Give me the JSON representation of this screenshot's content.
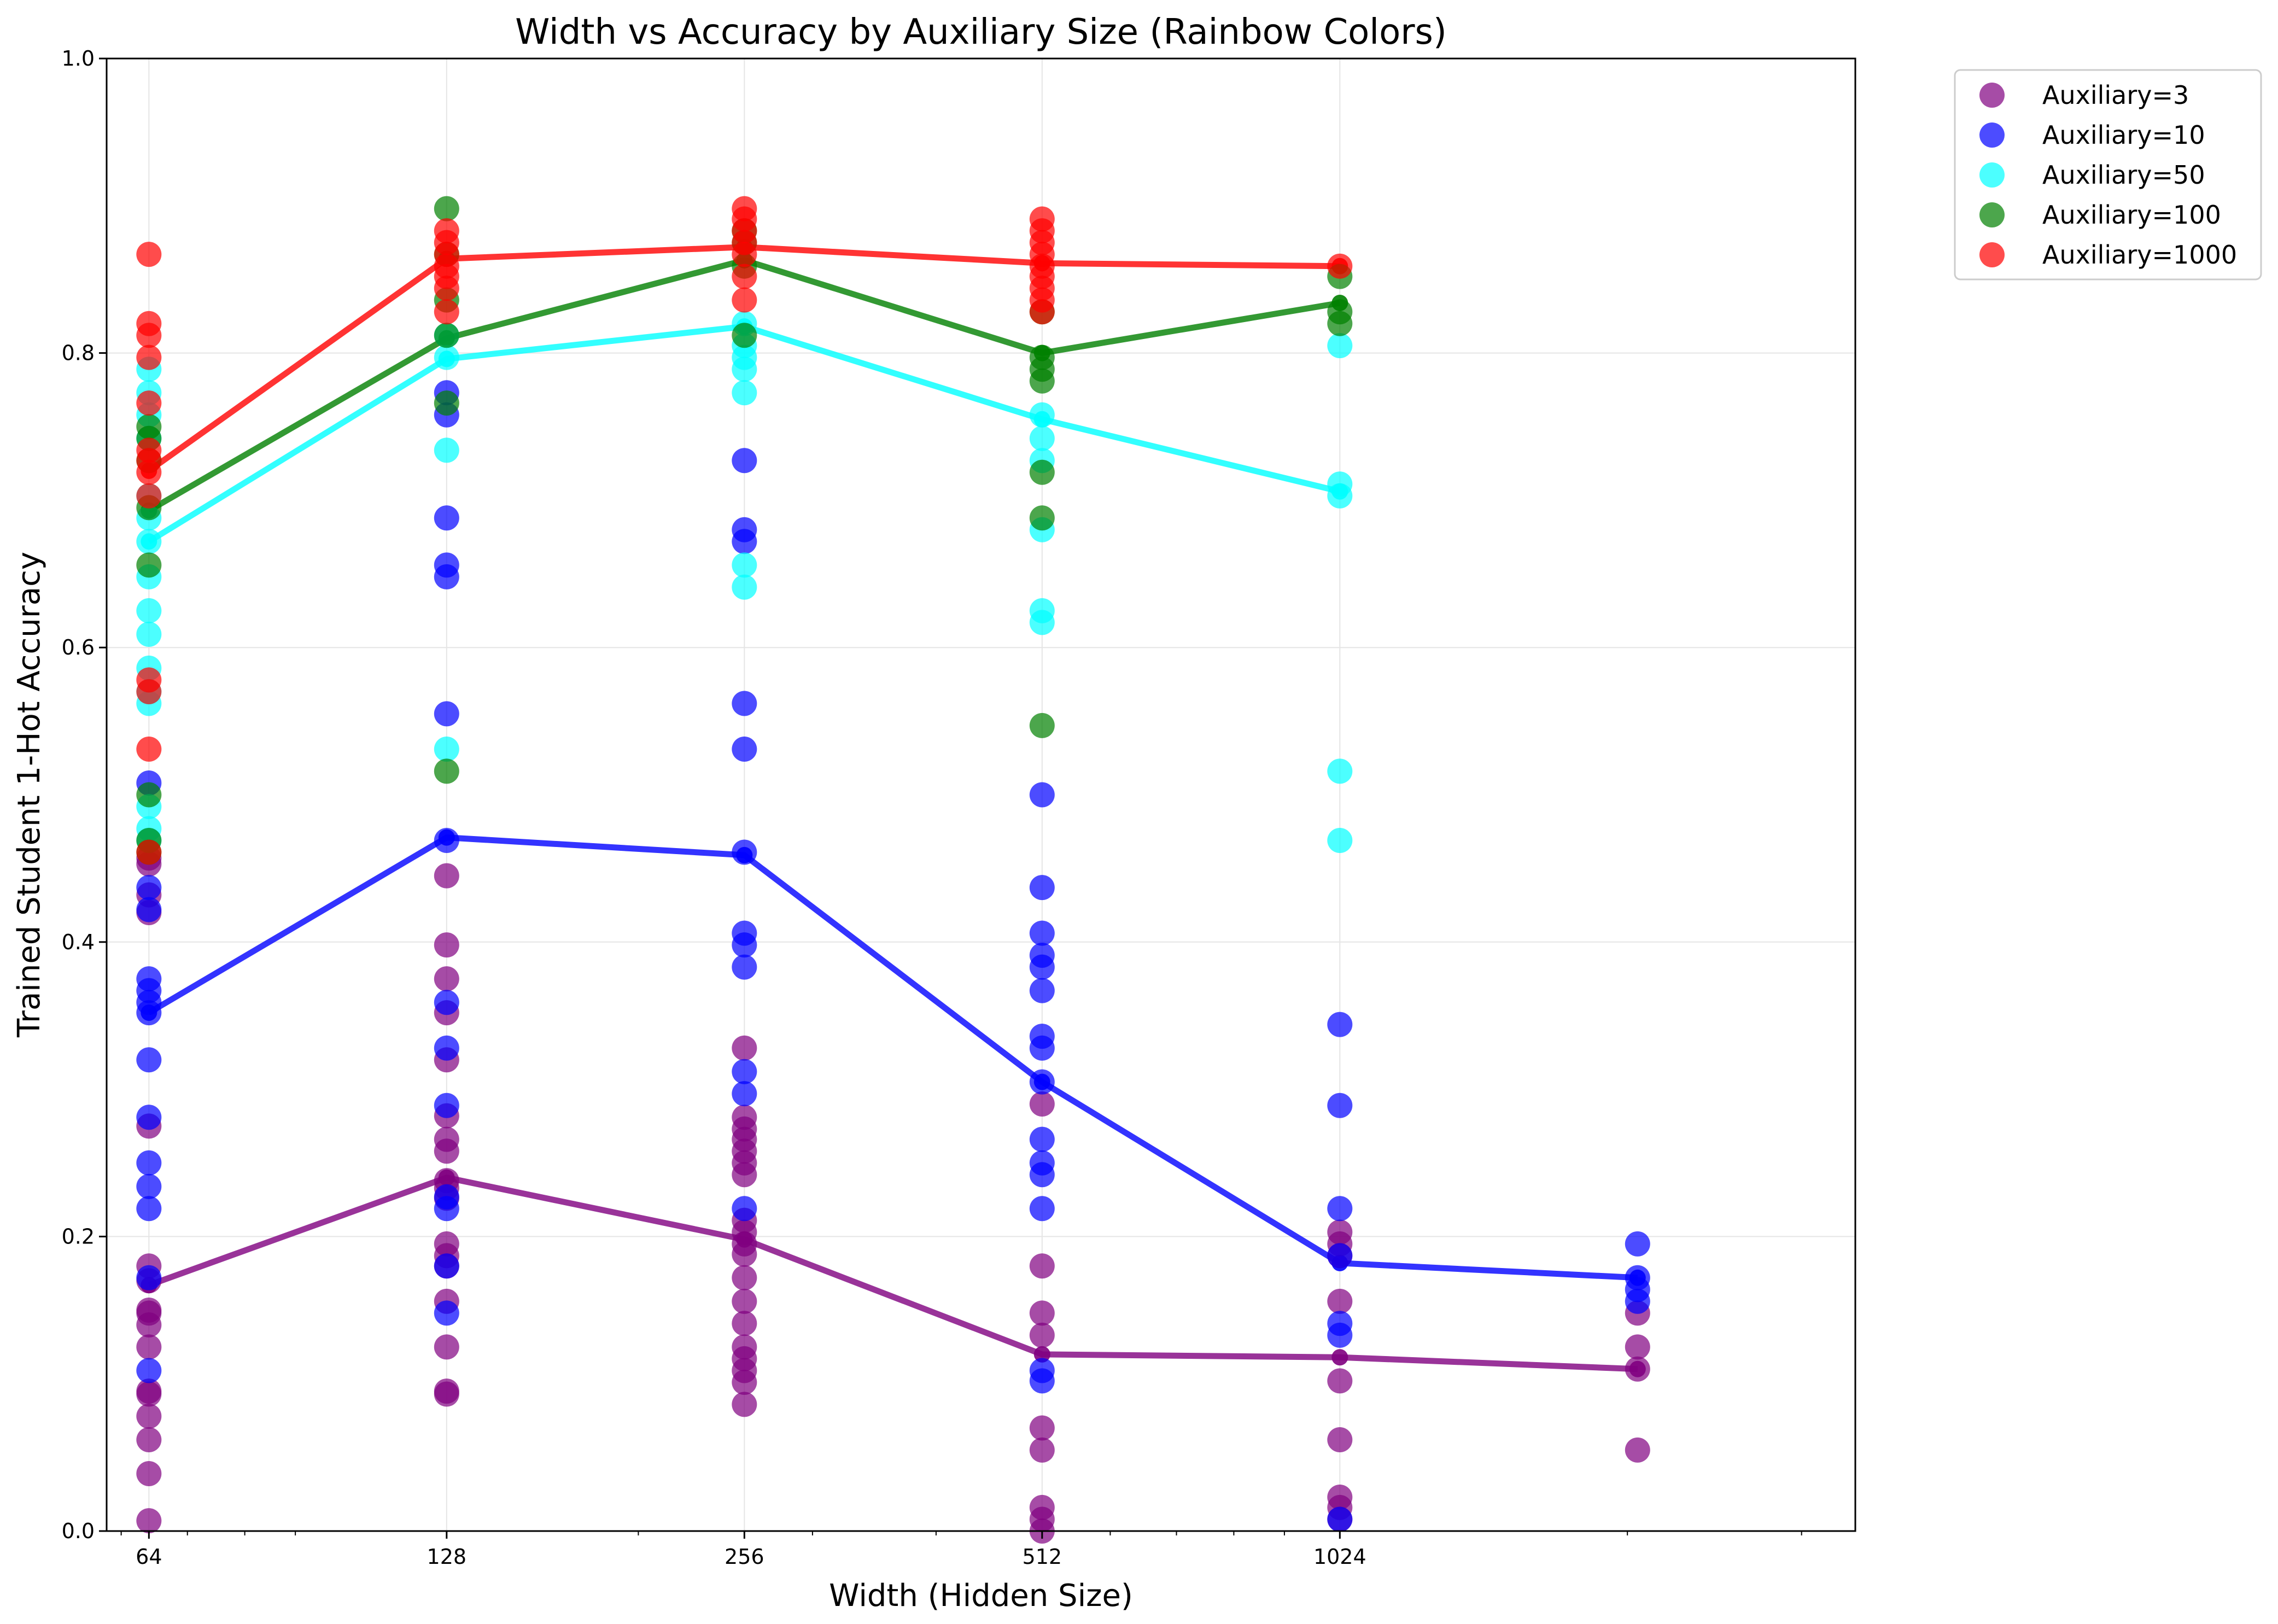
{
  "chart_data": {
    "type": "scatter",
    "title": "Width vs Accuracy by Auxiliary Size (Rainbow Colors)",
    "xlabel": "Width (Hidden Size)",
    "ylabel": "Trained Student 1-Hot Accuracy",
    "x_scale": "log2",
    "xlim": [
      58,
      3400
    ],
    "ylim": [
      0,
      1
    ],
    "x_ticks": [
      64,
      128,
      256,
      512,
      1024
    ],
    "x_tick_labels": [
      "64",
      "128",
      "256",
      "512",
      "1024"
    ],
    "y_ticks": [
      0,
      0.2,
      0.4,
      0.6,
      0.8,
      1.0
    ],
    "y_tick_labels": [
      "0.0",
      "0.2",
      "0.4",
      "0.6",
      "0.8",
      "1.0"
    ],
    "grid": true,
    "legend_position": "outside-top-right",
    "series": [
      {
        "name": "Auxiliary=3",
        "color": "#800080",
        "mean_line": {
          "x": [
            64,
            128,
            256,
            512,
            1024,
            2048
          ],
          "y": [
            0.167,
            0.24,
            0.198,
            0.12,
            0.118,
            0.11
          ]
        },
        "points": [
          {
            "x": 64,
            "y": [
              0.007,
              0.039,
              0.062,
              0.078,
              0.093,
              0.095,
              0.125,
              0.14,
              0.148,
              0.15,
              0.17,
              0.18,
              0.275,
              0.42,
              0.432,
              0.453,
              0.457
            ]
          },
          {
            "x": 128,
            "y": [
              0.093,
              0.095,
              0.125,
              0.156,
              0.18,
              0.187,
              0.195,
              0.226,
              0.233,
              0.238,
              0.258,
              0.266,
              0.282,
              0.32,
              0.352,
              0.375,
              0.398,
              0.445
            ]
          },
          {
            "x": 256,
            "y": [
              0.086,
              0.101,
              0.109,
              0.117,
              0.125,
              0.141,
              0.156,
              0.172,
              0.188,
              0.195,
              0.203,
              0.211,
              0.242,
              0.25,
              0.258,
              0.266,
              0.273,
              0.281,
              0.328
            ]
          },
          {
            "x": 512,
            "y": [
              0.0,
              0.008,
              0.016,
              0.055,
              0.07,
              0.133,
              0.148,
              0.18,
              0.29
            ]
          },
          {
            "x": 1024,
            "y": [
              0.008,
              0.016,
              0.023,
              0.062,
              0.102,
              0.156,
              0.187,
              0.195,
              0.203
            ]
          },
          {
            "x": 2048,
            "y": [
              0.055,
              0.11,
              0.125,
              0.148
            ]
          }
        ]
      },
      {
        "name": "Auxiliary=10",
        "color": "#0000ff",
        "mean_line": {
          "x": [
            64,
            128,
            256,
            512,
            1024,
            2048
          ],
          "y": [
            0.352,
            0.471,
            0.459,
            0.305,
            0.182,
            0.172
          ]
        },
        "points": [
          {
            "x": 64,
            "y": [
              0.109,
              0.172,
              0.219,
              0.234,
              0.25,
              0.281,
              0.32,
              0.352,
              0.359,
              0.367,
              0.375,
              0.422,
              0.437,
              0.508
            ]
          },
          {
            "x": 128,
            "y": [
              0.148,
              0.18,
              0.219,
              0.227,
              0.289,
              0.328,
              0.359,
              0.469,
              0.555,
              0.648,
              0.656,
              0.688,
              0.758,
              0.773
            ]
          },
          {
            "x": 256,
            "y": [
              0.219,
              0.297,
              0.312,
              0.383,
              0.398,
              0.406,
              0.461,
              0.531,
              0.562,
              0.672,
              0.68,
              0.727
            ]
          },
          {
            "x": 512,
            "y": [
              0.102,
              0.109,
              0.219,
              0.242,
              0.25,
              0.266,
              0.305,
              0.328,
              0.336,
              0.367,
              0.383,
              0.391,
              0.406,
              0.437,
              0.5
            ]
          },
          {
            "x": 1024,
            "y": [
              0.008,
              0.133,
              0.141,
              0.187,
              0.219,
              0.289,
              0.344
            ]
          },
          {
            "x": 2048,
            "y": [
              0.156,
              0.164,
              0.172,
              0.195
            ]
          }
        ]
      },
      {
        "name": "Auxiliary=50",
        "color": "#00ffff",
        "mean_line": {
          "x": [
            64,
            128,
            256,
            512,
            1024
          ],
          "y": [
            0.672,
            0.796,
            0.818,
            0.755,
            0.706
          ]
        },
        "points": [
          {
            "x": 64,
            "y": [
              0.469,
              0.477,
              0.492,
              0.562,
              0.57,
              0.586,
              0.609,
              0.625,
              0.648,
              0.672,
              0.688,
              0.703,
              0.742,
              0.758,
              0.773,
              0.789
            ]
          },
          {
            "x": 128,
            "y": [
              0.531,
              0.734,
              0.797,
              0.812
            ]
          },
          {
            "x": 256,
            "y": [
              0.641,
              0.656,
              0.773,
              0.789,
              0.797,
              0.805,
              0.82
            ]
          },
          {
            "x": 512,
            "y": [
              0.617,
              0.625,
              0.68,
              0.727,
              0.742,
              0.758
            ]
          },
          {
            "x": 1024,
            "y": [
              0.469,
              0.516,
              0.703,
              0.711,
              0.805
            ]
          }
        ]
      },
      {
        "name": "Auxiliary=100",
        "color": "#008000",
        "mean_line": {
          "x": [
            64,
            128,
            256,
            512,
            1024
          ],
          "y": [
            0.693,
            0.81,
            0.863,
            0.8,
            0.834
          ]
        },
        "points": [
          {
            "x": 64,
            "y": [
              0.461,
              0.469,
              0.5,
              0.656,
              0.695,
              0.727,
              0.742,
              0.75
            ]
          },
          {
            "x": 128,
            "y": [
              0.516,
              0.766,
              0.812,
              0.836,
              0.867,
              0.898
            ]
          },
          {
            "x": 256,
            "y": [
              0.812,
              0.859,
              0.875,
              0.883
            ]
          },
          {
            "x": 512,
            "y": [
              0.547,
              0.688,
              0.719,
              0.781,
              0.789,
              0.797,
              0.828
            ]
          },
          {
            "x": 1024,
            "y": [
              0.82,
              0.828,
              0.852
            ]
          }
        ]
      },
      {
        "name": "Auxiliary=1000",
        "color": "#ff0000",
        "mean_line": {
          "x": [
            64,
            128,
            256,
            512,
            1024
          ],
          "y": [
            0.72,
            0.864,
            0.872,
            0.861,
            0.859
          ]
        },
        "points": [
          {
            "x": 64,
            "y": [
              0.461,
              0.531,
              0.57,
              0.578,
              0.703,
              0.719,
              0.727,
              0.734,
              0.766,
              0.797,
              0.812,
              0.82,
              0.867
            ]
          },
          {
            "x": 128,
            "y": [
              0.828,
              0.844,
              0.852,
              0.859,
              0.867,
              0.875,
              0.883
            ]
          },
          {
            "x": 256,
            "y": [
              0.836,
              0.852,
              0.867,
              0.875,
              0.883,
              0.891,
              0.898
            ]
          },
          {
            "x": 512,
            "y": [
              0.828,
              0.836,
              0.844,
              0.852,
              0.859,
              0.867,
              0.875,
              0.883,
              0.891
            ]
          },
          {
            "x": 1024,
            "y": [
              0.859
            ]
          }
        ]
      }
    ]
  }
}
